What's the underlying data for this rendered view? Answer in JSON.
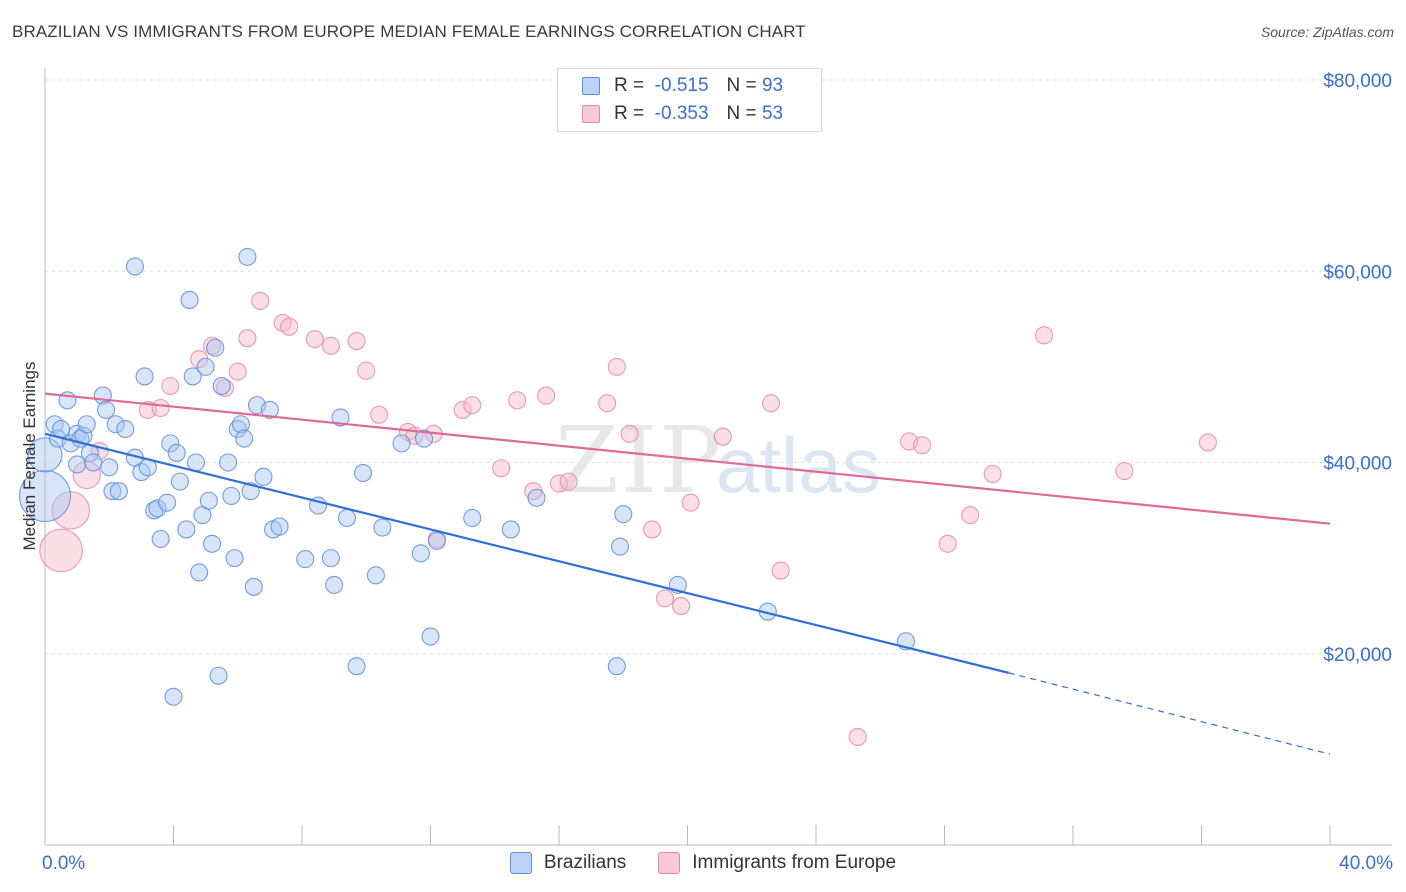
{
  "title": "BRAZILIAN VS IMMIGRANTS FROM EUROPE MEDIAN FEMALE EARNINGS CORRELATION CHART",
  "source": "Source: ZipAtlas.com",
  "watermark": {
    "zip": "ZIP",
    "atlas": "atlas"
  },
  "legend_top": {
    "rows": [
      {
        "r_label": "R =",
        "r_value": "-0.515",
        "n_label": "N =",
        "n_value": "93"
      },
      {
        "r_label": "R =",
        "r_value": "-0.353",
        "n_label": "N =",
        "n_value": "53"
      }
    ]
  },
  "legend_bottom": {
    "items": [
      "Brazilians",
      "Immigrants from Europe"
    ]
  },
  "colors": {
    "blue_fill": "#a9c6f2",
    "blue_stroke": "#5b8fd8",
    "blue_line": "#2f6fd6",
    "pink_fill": "#f7b8ca",
    "pink_stroke": "#e58aa6",
    "pink_line": "#e06a95",
    "tick_text": "#3a6fcf"
  },
  "chart_data": {
    "type": "scatter",
    "title": "BRAZILIAN VS IMMIGRANTS FROM EUROPE MEDIAN FEMALE EARNINGS CORRELATION CHART",
    "xlabel": "",
    "ylabel": "Median Female Earnings",
    "xlim": [
      0,
      40
    ],
    "ylim": [
      0,
      80000
    ],
    "x_tick_labels": [
      "0.0%",
      "40.0%"
    ],
    "y_ticks": [
      {
        "value": 20000,
        "label": "$20,000"
      },
      {
        "value": 40000,
        "label": "$40,000"
      },
      {
        "value": 60000,
        "label": "$60,000"
      },
      {
        "value": 80000,
        "label": "$80,000"
      }
    ],
    "grid": true,
    "legend_position": "top-center",
    "series": [
      {
        "name": "Brazilians",
        "color": "#a9c6f2",
        "trend": {
          "x": [
            0,
            30
          ],
          "y": [
            43000,
            18000
          ],
          "dashed_to": [
            40,
            9500
          ]
        },
        "points": [
          [
            0.0,
            36500,
            3
          ],
          [
            0.0,
            40800,
            2
          ],
          [
            0.3,
            44000,
            1
          ],
          [
            0.4,
            42500,
            1
          ],
          [
            0.5,
            43500,
            1
          ],
          [
            0.7,
            46500,
            1
          ],
          [
            0.8,
            42000,
            1
          ],
          [
            1.0,
            39800,
            1
          ],
          [
            1.0,
            43000,
            1
          ],
          [
            1.1,
            42500,
            1
          ],
          [
            1.2,
            42800,
            1
          ],
          [
            1.3,
            44000,
            1
          ],
          [
            1.4,
            41000,
            1
          ],
          [
            1.5,
            40000,
            1
          ],
          [
            1.8,
            47000,
            1
          ],
          [
            1.9,
            45500,
            1
          ],
          [
            2.0,
            39500,
            1
          ],
          [
            2.1,
            37000,
            1
          ],
          [
            2.2,
            44000,
            1
          ],
          [
            2.3,
            37000,
            1
          ],
          [
            2.5,
            43500,
            1
          ],
          [
            2.8,
            40500,
            1
          ],
          [
            2.8,
            60500,
            1
          ],
          [
            3.0,
            39000,
            1
          ],
          [
            3.1,
            49000,
            1
          ],
          [
            3.2,
            39500,
            1
          ],
          [
            3.4,
            35000,
            1
          ],
          [
            3.5,
            35200,
            1
          ],
          [
            3.6,
            32000,
            1
          ],
          [
            3.8,
            35800,
            1
          ],
          [
            3.9,
            42000,
            1
          ],
          [
            4.0,
            15500,
            1
          ],
          [
            4.1,
            41000,
            1
          ],
          [
            4.2,
            38000,
            1
          ],
          [
            4.4,
            33000,
            1
          ],
          [
            4.5,
            57000,
            1
          ],
          [
            4.6,
            49000,
            1
          ],
          [
            4.7,
            40000,
            1
          ],
          [
            4.8,
            28500,
            1
          ],
          [
            4.9,
            34500,
            1
          ],
          [
            5.0,
            50000,
            1
          ],
          [
            5.1,
            36000,
            1
          ],
          [
            5.2,
            31500,
            1
          ],
          [
            5.3,
            52000,
            1
          ],
          [
            5.4,
            17700,
            1
          ],
          [
            5.5,
            48000,
            1
          ],
          [
            5.7,
            40000,
            1
          ],
          [
            5.8,
            36500,
            1
          ],
          [
            5.9,
            30000,
            1
          ],
          [
            6.0,
            43500,
            1
          ],
          [
            6.1,
            44000,
            1
          ],
          [
            6.2,
            42500,
            1
          ],
          [
            6.3,
            61500,
            1
          ],
          [
            6.4,
            37000,
            1
          ],
          [
            6.5,
            27000,
            1
          ],
          [
            6.6,
            46000,
            1
          ],
          [
            6.8,
            38500,
            1
          ],
          [
            7.0,
            45500,
            1
          ],
          [
            7.1,
            33000,
            1
          ],
          [
            7.3,
            33300,
            1
          ],
          [
            8.1,
            29900,
            1
          ],
          [
            8.5,
            35500,
            1
          ],
          [
            8.9,
            30000,
            1
          ],
          [
            9.0,
            27200,
            1
          ],
          [
            9.2,
            44700,
            1
          ],
          [
            9.4,
            34200,
            1
          ],
          [
            9.7,
            18700,
            1
          ],
          [
            9.9,
            38900,
            1
          ],
          [
            10.3,
            28200,
            1
          ],
          [
            10.5,
            33200,
            1
          ],
          [
            11.1,
            42000,
            1
          ],
          [
            11.7,
            30500,
            1
          ],
          [
            11.8,
            42500,
            1
          ],
          [
            12.0,
            21800,
            1
          ],
          [
            12.2,
            31800,
            1
          ],
          [
            13.3,
            34200,
            1
          ],
          [
            14.5,
            33000,
            1
          ],
          [
            15.3,
            36300,
            1
          ],
          [
            17.8,
            18700,
            1
          ],
          [
            17.9,
            31200,
            1
          ],
          [
            18.0,
            34600,
            1
          ],
          [
            19.7,
            27200,
            1
          ],
          [
            22.5,
            24400,
            1
          ],
          [
            26.8,
            21300,
            1
          ]
        ]
      },
      {
        "name": "Immigrants from Europe",
        "color": "#f7b8ca",
        "trend": {
          "x": [
            0,
            40
          ],
          "y": [
            47200,
            33600
          ]
        },
        "points": [
          [
            0.5,
            30800,
            2.5
          ],
          [
            0.8,
            35000,
            2.2
          ],
          [
            1.3,
            38700,
            1.6
          ],
          [
            1.7,
            41200,
            1
          ],
          [
            3.2,
            45500,
            1
          ],
          [
            3.6,
            45700,
            1
          ],
          [
            3.9,
            48000,
            1
          ],
          [
            4.8,
            50800,
            1
          ],
          [
            5.2,
            52200,
            1
          ],
          [
            5.6,
            47800,
            1
          ],
          [
            6.0,
            49500,
            1
          ],
          [
            6.3,
            53000,
            1
          ],
          [
            6.7,
            56900,
            1
          ],
          [
            7.4,
            54600,
            1
          ],
          [
            7.6,
            54200,
            1
          ],
          [
            8.4,
            52900,
            1
          ],
          [
            8.9,
            52200,
            1
          ],
          [
            9.7,
            52700,
            1
          ],
          [
            10.0,
            49600,
            1
          ],
          [
            10.4,
            45000,
            1
          ],
          [
            11.3,
            43200,
            1
          ],
          [
            11.5,
            42800,
            1
          ],
          [
            12.1,
            43000,
            1
          ],
          [
            12.2,
            32000,
            1
          ],
          [
            13.0,
            45500,
            1
          ],
          [
            13.3,
            46000,
            1
          ],
          [
            14.2,
            39400,
            1
          ],
          [
            14.7,
            46500,
            1
          ],
          [
            15.2,
            37000,
            1
          ],
          [
            15.6,
            47000,
            1
          ],
          [
            16.0,
            37800,
            1
          ],
          [
            16.3,
            38000,
            1
          ],
          [
            17.5,
            46200,
            1
          ],
          [
            17.8,
            50000,
            1
          ],
          [
            18.2,
            43000,
            1
          ],
          [
            18.9,
            33000,
            1
          ],
          [
            19.3,
            25800,
            1
          ],
          [
            19.8,
            25000,
            1
          ],
          [
            20.1,
            35800,
            1
          ],
          [
            21.1,
            42700,
            1
          ],
          [
            22.6,
            46200,
            1
          ],
          [
            22.9,
            28700,
            1
          ],
          [
            25.3,
            11300,
            1
          ],
          [
            26.9,
            42200,
            1
          ],
          [
            27.3,
            41800,
            1
          ],
          [
            28.1,
            31500,
            1
          ],
          [
            28.8,
            34500,
            1
          ],
          [
            29.5,
            38800,
            1
          ],
          [
            31.1,
            53300,
            1
          ],
          [
            33.6,
            39100,
            1
          ],
          [
            36.2,
            42100,
            1
          ]
        ]
      }
    ]
  }
}
